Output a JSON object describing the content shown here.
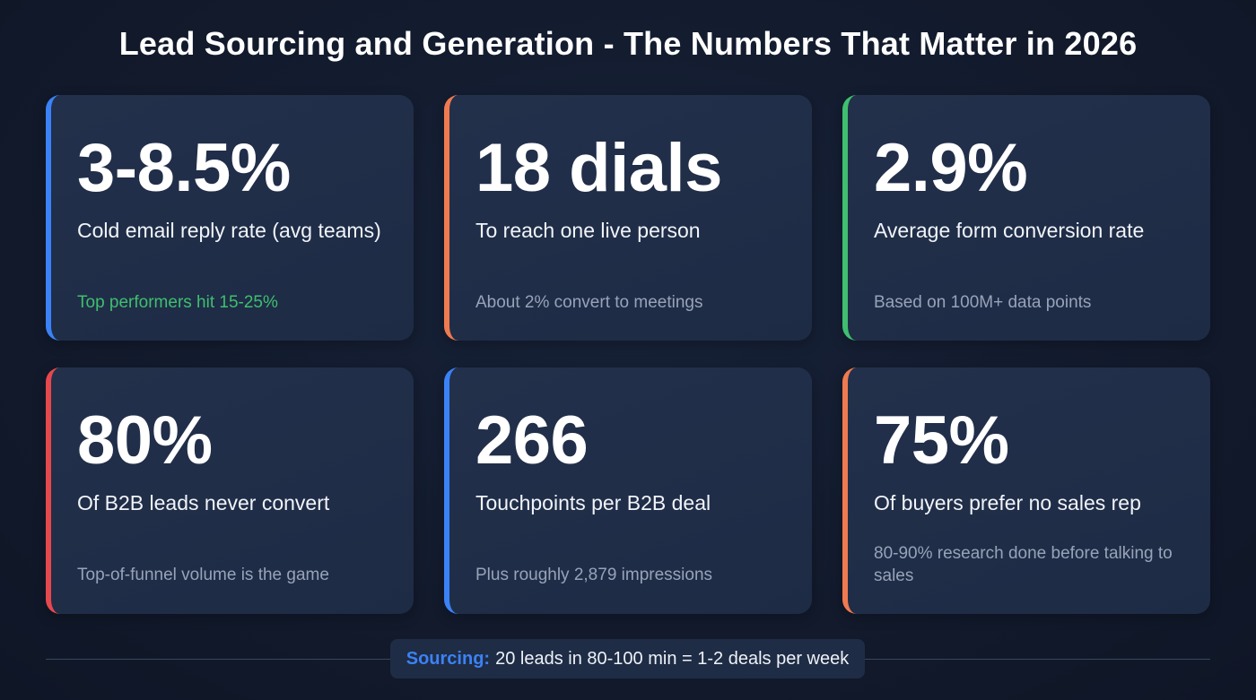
{
  "header": {
    "title": "Lead Sourcing and Generation - The Numbers That Matter in 2026"
  },
  "colors": {
    "background": "#131b2e",
    "card": "#1f2d47",
    "blue": "#3b82f6",
    "orange": "#f07a50",
    "green": "#3fbf6f",
    "red": "#e5484d",
    "muted": "#97a3b8"
  },
  "cards": [
    {
      "value": "3-8.5%",
      "label": "Cold email reply rate (avg teams)",
      "note": "Top performers hit 15-25%",
      "accent": "#3b82f6",
      "note_color": "green"
    },
    {
      "value": "18 dials",
      "label": "To reach one live person",
      "note": "About 2% convert to meetings",
      "accent": "#f07a50"
    },
    {
      "value": "2.9%",
      "label": "Average form conversion rate",
      "note": "Based on 100M+ data points",
      "accent": "#3fbf6f"
    },
    {
      "value": "80%",
      "label": "Of B2B leads never convert",
      "note": "Top-of-funnel volume is the game",
      "accent": "#e5484d"
    },
    {
      "value": "266",
      "label": "Touchpoints per B2B deal",
      "note": "Plus roughly 2,879 impressions",
      "accent": "#3b82f6"
    },
    {
      "value": "75%",
      "label": "Of buyers prefer no sales rep",
      "note": "80-90% research done before talking to sales",
      "accent": "#f07a50"
    }
  ],
  "footer": {
    "key": "Sourcing:",
    "text": "20 leads in 80-100 min = 1-2 deals per week"
  }
}
